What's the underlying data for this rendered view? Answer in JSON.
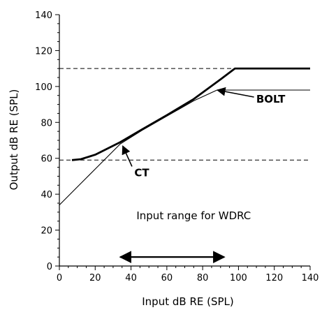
{
  "chart_data": {
    "type": "line",
    "title": "",
    "xlabel": "Input dB RE (SPL)",
    "ylabel": "Output dB RE (SPL)",
    "xlim": [
      0,
      140
    ],
    "ylim": [
      0,
      140
    ],
    "x_ticks": [
      "0",
      "20",
      "40",
      "60",
      "80",
      "100",
      "120",
      "140"
    ],
    "y_ticks": [
      "0",
      "20",
      "40",
      "60",
      "80",
      "100",
      "120",
      "140"
    ],
    "x_minor_step": 5,
    "y_minor_step": 5,
    "grid": false,
    "reference_lines": [
      {
        "axis": "y",
        "value": 110,
        "style": "dashed"
      },
      {
        "axis": "y",
        "value": 59,
        "style": "dashed"
      }
    ],
    "series": [
      {
        "name": "",
        "line": "thick",
        "points": [
          [
            7,
            59
          ],
          [
            12,
            59.5
          ],
          [
            20,
            62
          ],
          [
            34,
            69
          ],
          [
            46,
            76
          ],
          [
            60,
            84
          ],
          [
            75,
            93
          ],
          [
            90,
            104
          ],
          [
            98,
            110
          ],
          [
            140,
            110
          ]
        ]
      },
      {
        "name": "",
        "line": "thin",
        "points": [
          [
            0,
            34
          ],
          [
            10,
            44
          ],
          [
            20,
            54
          ],
          [
            34,
            68
          ],
          [
            46,
            75.5
          ],
          [
            60,
            83.5
          ],
          [
            75,
            92
          ],
          [
            88,
            98
          ],
          [
            140,
            98
          ]
        ]
      }
    ],
    "annotations": [
      {
        "text": "BOLT",
        "at": [
          118,
          91
        ],
        "arrow_to": [
          87,
          98
        ]
      },
      {
        "text": "CT",
        "at": [
          46,
          50
        ],
        "arrow_to": [
          35,
          68
        ]
      },
      {
        "text": "Input range for WDRC",
        "at": [
          75,
          26
        ]
      }
    ],
    "range_arrow": {
      "x_from": 34,
      "x_to": 92,
      "y": 5
    }
  }
}
